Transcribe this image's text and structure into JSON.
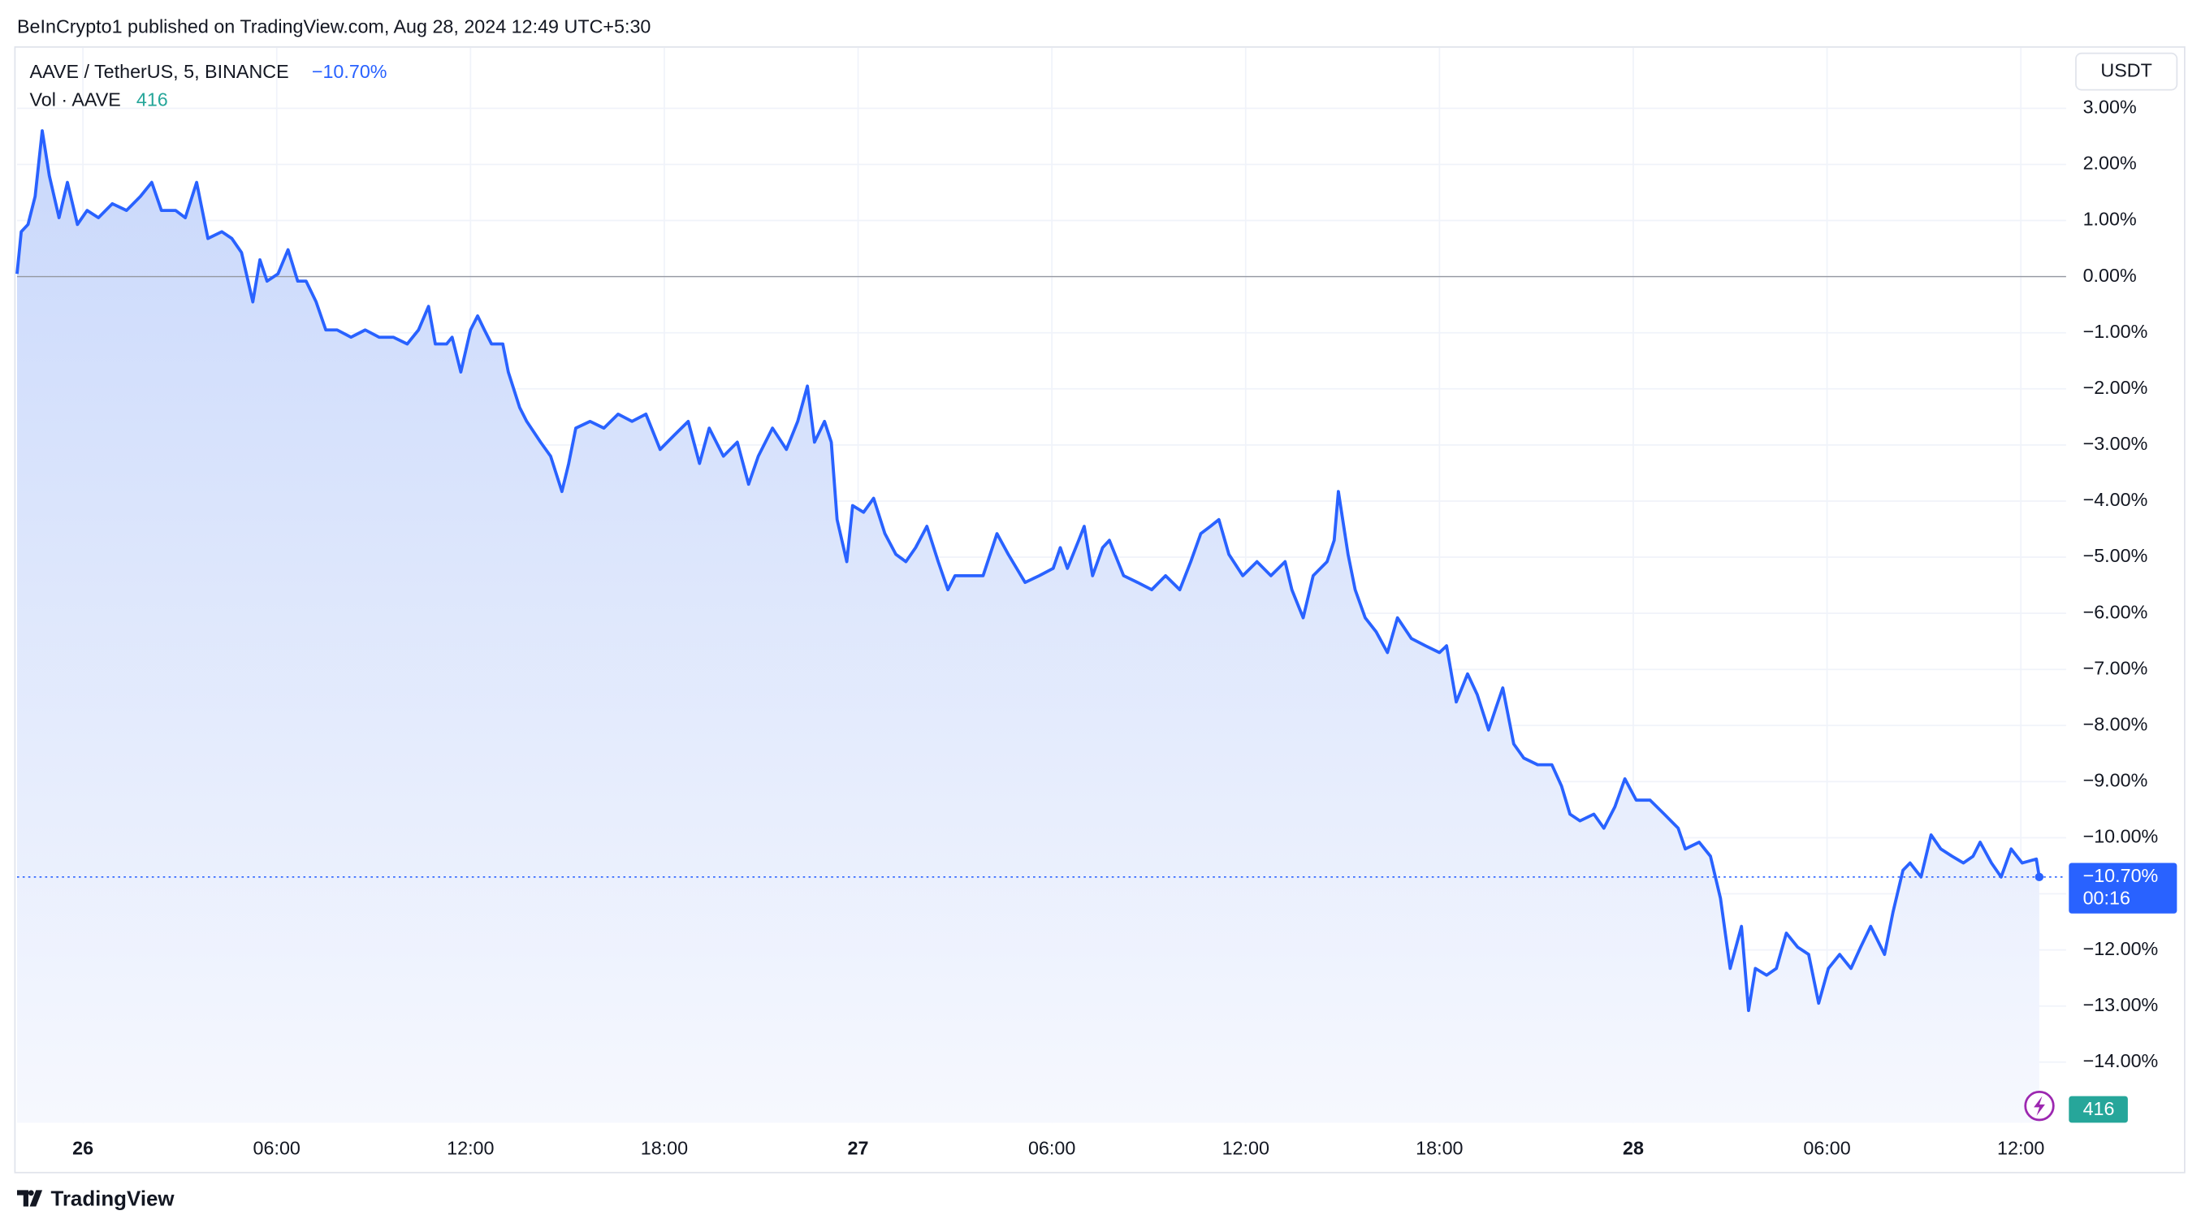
{
  "chart_data": {
    "type": "line",
    "header": "BeInCrypto1 published on TradingView.com, Aug 28, 2024 12:49 UTC+5:30",
    "symbol": "AAVE / TetherUS, 5, BINANCE",
    "change": {
      "value": -10.7,
      "label": "−10.70%"
    },
    "volume_label": "Vol · AAVE",
    "volume": 416,
    "currency": "USDT",
    "countdown": "00:16",
    "brand": "TradingView",
    "grid": true,
    "x": [
      -2.04,
      -1.91,
      -1.7,
      -1.48,
      -1.26,
      -1.04,
      -0.74,
      -0.48,
      -0.17,
      0.13,
      0.48,
      0.91,
      1.35,
      1.78,
      2.13,
      2.43,
      2.87,
      3.17,
      3.52,
      3.87,
      4.3,
      4.61,
      4.91,
      5.26,
      5.48,
      5.7,
      6.04,
      6.35,
      6.65,
      6.91,
      7.22,
      7.52,
      7.87,
      8.3,
      8.74,
      9.17,
      9.61,
      10.04,
      10.39,
      10.7,
      10.91,
      11.26,
      11.43,
      11.7,
      12.0,
      12.22,
      12.43,
      12.65,
      13.0,
      13.17,
      13.52,
      13.74,
      14.17,
      14.48,
      14.83,
      15.04,
      15.26,
      15.7,
      16.13,
      16.57,
      17.0,
      17.43,
      17.87,
      18.3,
      18.74,
      19.09,
      19.39,
      19.83,
      20.26,
      20.61,
      20.91,
      21.35,
      21.78,
      22.13,
      22.43,
      22.65,
      22.96,
      23.17,
      23.35,
      23.65,
      23.83,
      24.17,
      24.48,
      24.83,
      25.17,
      25.48,
      25.78,
      26.13,
      26.48,
      26.78,
      27.0,
      27.43,
      27.87,
      28.3,
      28.65,
      29.17,
      29.61,
      30.04,
      30.26,
      30.48,
      30.83,
      31.0,
      31.26,
      31.57,
      31.78,
      32.22,
      32.65,
      33.09,
      33.52,
      33.96,
      34.3,
      34.61,
      34.91,
      35.17,
      35.48,
      35.91,
      36.35,
      36.78,
      37.22,
      37.43,
      37.78,
      38.09,
      38.52,
      38.74,
      38.87,
      39.17,
      39.39,
      39.7,
      40.04,
      40.39,
      40.7,
      41.13,
      41.57,
      42.0,
      42.22,
      42.52,
      42.87,
      43.17,
      43.52,
      43.74,
      43.96,
      44.3,
      44.61,
      45.04,
      45.48,
      45.78,
      46.04,
      46.35,
      46.78,
      47.09,
      47.43,
      47.74,
      48.09,
      48.52,
      48.96,
      49.39,
      49.61,
      50.04,
      50.39,
      50.7,
      51.0,
      51.35,
      51.57,
      51.78,
      52.13,
      52.43,
      52.74,
      53.09,
      53.43,
      53.74,
      54.04,
      54.39,
      54.74,
      55.04,
      55.35,
      55.78,
      56.04,
      56.35,
      56.57,
      56.91,
      57.22,
      57.52,
      57.87,
      58.22,
      58.52,
      58.74,
      59.09,
      59.39,
      59.7,
      60.04,
      60.48,
      60.57
    ],
    "series": [
      {
        "name": "AAVE / TetherUS",
        "color": "#2962ff",
        "values": [
          0.05,
          0.8,
          0.93,
          1.43,
          2.6,
          1.8,
          1.05,
          1.68,
          0.93,
          1.18,
          1.05,
          1.3,
          1.18,
          1.43,
          1.68,
          1.18,
          1.18,
          1.05,
          1.68,
          0.68,
          0.8,
          0.68,
          0.43,
          -0.45,
          0.3,
          -0.08,
          0.05,
          0.48,
          -0.08,
          -0.08,
          -0.45,
          -0.95,
          -0.95,
          -1.08,
          -0.95,
          -1.08,
          -1.08,
          -1.2,
          -0.95,
          -0.53,
          -1.2,
          -1.2,
          -1.08,
          -1.7,
          -0.95,
          -0.7,
          -0.95,
          -1.2,
          -1.2,
          -1.7,
          -2.33,
          -2.58,
          -2.95,
          -3.2,
          -3.83,
          -3.33,
          -2.7,
          -2.58,
          -2.7,
          -2.45,
          -2.58,
          -2.45,
          -3.08,
          -2.83,
          -2.58,
          -3.33,
          -2.7,
          -3.2,
          -2.95,
          -3.7,
          -3.2,
          -2.7,
          -3.08,
          -2.58,
          -1.95,
          -2.95,
          -2.58,
          -2.95,
          -4.33,
          -5.08,
          -4.08,
          -4.2,
          -3.95,
          -4.58,
          -4.95,
          -5.08,
          -4.83,
          -4.45,
          -5.08,
          -5.58,
          -5.33,
          -5.33,
          -5.33,
          -4.58,
          -4.95,
          -5.45,
          -5.33,
          -5.2,
          -4.83,
          -5.2,
          -4.7,
          -4.45,
          -5.33,
          -4.83,
          -4.7,
          -5.33,
          -5.45,
          -5.58,
          -5.33,
          -5.58,
          -5.08,
          -4.58,
          -4.45,
          -4.33,
          -4.95,
          -5.33,
          -5.08,
          -5.33,
          -5.08,
          -5.58,
          -6.08,
          -5.33,
          -5.08,
          -4.7,
          -3.83,
          -4.95,
          -5.58,
          -6.08,
          -6.33,
          -6.7,
          -6.08,
          -6.45,
          -6.58,
          -6.7,
          -6.58,
          -7.58,
          -7.08,
          -7.45,
          -8.08,
          -7.7,
          -7.33,
          -8.33,
          -8.58,
          -8.7,
          -8.7,
          -9.08,
          -9.58,
          -9.7,
          -9.58,
          -9.83,
          -9.45,
          -8.95,
          -9.33,
          -9.33,
          -9.58,
          -9.83,
          -10.2,
          -10.08,
          -10.33,
          -11.08,
          -12.33,
          -11.58,
          -13.08,
          -12.33,
          -12.45,
          -12.33,
          -11.7,
          -11.95,
          -12.08,
          -12.95,
          -12.33,
          -12.08,
          -12.33,
          -11.95,
          -11.58,
          -12.08,
          -11.33,
          -10.58,
          -10.45,
          -10.7,
          -9.95,
          -10.2,
          -10.33,
          -10.45,
          -10.33,
          -10.08,
          -10.45,
          -10.7,
          -10.2,
          -10.45,
          -10.38,
          -10.7
        ]
      }
    ],
    "xlim": [
      -2.04,
      61.4
    ],
    "xticks": [
      {
        "value": 0,
        "label": "26"
      },
      {
        "value": 6,
        "label": "06:00"
      },
      {
        "value": 12,
        "label": "12:00"
      },
      {
        "value": 18,
        "label": "18:00"
      },
      {
        "value": 24,
        "label": "27"
      },
      {
        "value": 30,
        "label": "06:00"
      },
      {
        "value": 36,
        "label": "12:00"
      },
      {
        "value": 42,
        "label": "18:00"
      },
      {
        "value": 48,
        "label": "28"
      },
      {
        "value": 54,
        "label": "06:00"
      },
      {
        "value": 60,
        "label": "12:00"
      }
    ],
    "ylim": [
      -15.08,
      3.93
    ],
    "yticks": [
      {
        "value": 3,
        "label": "3.00%"
      },
      {
        "value": 2,
        "label": "2.00%"
      },
      {
        "value": 1,
        "label": "1.00%"
      },
      {
        "value": 0,
        "label": "0.00%"
      },
      {
        "value": -1,
        "label": "−1.00%"
      },
      {
        "value": -2,
        "label": "−2.00%"
      },
      {
        "value": -3,
        "label": "−3.00%"
      },
      {
        "value": -4,
        "label": "−4.00%"
      },
      {
        "value": -5,
        "label": "−5.00%"
      },
      {
        "value": -6,
        "label": "−6.00%"
      },
      {
        "value": -7,
        "label": "−7.00%"
      },
      {
        "value": -8,
        "label": "−8.00%"
      },
      {
        "value": -9,
        "label": "−9.00%"
      },
      {
        "value": -10,
        "label": "−10.00%"
      },
      {
        "value": -11,
        "label": "−11.00%"
      },
      {
        "value": -12,
        "label": "−12.00%"
      },
      {
        "value": -13,
        "label": "−13.00%"
      },
      {
        "value": -14,
        "label": "−14.00%"
      }
    ]
  }
}
